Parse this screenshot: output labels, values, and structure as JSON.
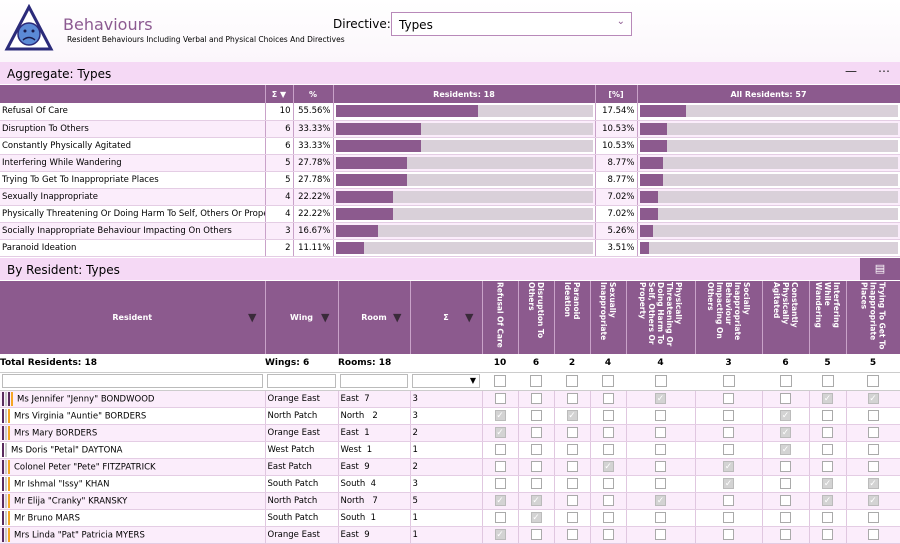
{
  "header": {
    "title": "Behaviours",
    "subtitle": "Resident Behaviours Including Verbal and Physical Choices And Directives",
    "directive_label": "Directive:",
    "directive_value": "Types"
  },
  "aggregate": {
    "title": "Aggregate: Types",
    "columns": {
      "sigma": "Σ",
      "pct": "%",
      "residents": "Residents: 18",
      "pct2": "[%]",
      "all": "All Residents: 57"
    },
    "rows": [
      {
        "label": "Refusal Of Care",
        "count": "10",
        "pct": "55.56%",
        "pct_value": 55.56,
        "all_pct": "17.54%",
        "all_value": 17.54
      },
      {
        "label": "Disruption To Others",
        "count": "6",
        "pct": "33.33%",
        "pct_value": 33.33,
        "all_pct": "10.53%",
        "all_value": 10.53
      },
      {
        "label": "Constantly Physically Agitated",
        "count": "6",
        "pct": "33.33%",
        "pct_value": 33.33,
        "all_pct": "10.53%",
        "all_value": 10.53
      },
      {
        "label": "Interfering While Wandering",
        "count": "5",
        "pct": "27.78%",
        "pct_value": 27.78,
        "all_pct": "8.77%",
        "all_value": 8.77
      },
      {
        "label": "Trying To Get To Inappropriate Places",
        "count": "5",
        "pct": "27.78%",
        "pct_value": 27.78,
        "all_pct": "8.77%",
        "all_value": 8.77
      },
      {
        "label": "Sexually Inappropriate",
        "count": "4",
        "pct": "22.22%",
        "pct_value": 22.22,
        "all_pct": "7.02%",
        "all_value": 7.02
      },
      {
        "label": "Physically Threatening Or Doing Harm To Self, Others Or Property",
        "count": "4",
        "pct": "22.22%",
        "pct_value": 22.22,
        "all_pct": "7.02%",
        "all_value": 7.02
      },
      {
        "label": "Socially Inappropriate Behaviour Impacting On Others",
        "count": "3",
        "pct": "16.67%",
        "pct_value": 16.67,
        "all_pct": "5.26%",
        "all_value": 5.26
      },
      {
        "label": "Paranoid Ideation",
        "count": "2",
        "pct": "11.11%",
        "pct_value": 11.11,
        "all_pct": "3.51%",
        "all_value": 3.51
      }
    ]
  },
  "by_resident": {
    "title": "By Resident: Types",
    "columns": {
      "resident": "Resident",
      "wing": "Wing",
      "room": "Room",
      "sigma": "Σ"
    },
    "type_columns": [
      "Refusal Of Care",
      "Disruption To Others",
      "Paranoid Ideation",
      "Sexually Inappropriate",
      "Physically Threatening Or Doing Harm To Self, Others Or Property",
      "Socially Inappropriate Behaviour Impacting On Others",
      "Constantly Physically Agitated",
      "Interfering While Wandering",
      "Trying To Get To Inappropriate Places"
    ],
    "totals": {
      "residents": "Total Residents: 18",
      "wings": "Wings: 6",
      "rooms": "Rooms: 18",
      "type_counts": [
        "10",
        "6",
        "2",
        "4",
        "4",
        "3",
        "6",
        "5",
        "5"
      ]
    },
    "rows": [
      {
        "name": "Ms Jennifer \"Jenny\" BONDWOOD",
        "wing": "Orange East",
        "room": "East  7",
        "count": "3",
        "stripes": [
          "#5a2a5e",
          "#ffffff",
          "#5a2a5e",
          "#f5a623"
        ],
        "checks": [
          0,
          0,
          0,
          0,
          1,
          0,
          0,
          1,
          1
        ]
      },
      {
        "name": "Mrs Virginia \"Auntie\" BORDERS",
        "wing": "North Patch",
        "room": "North   2",
        "count": "3",
        "stripes": [
          "#5a2a5e",
          "#ffffff",
          "#f5a623"
        ],
        "checks": [
          1,
          0,
          1,
          0,
          0,
          0,
          1,
          0,
          0
        ]
      },
      {
        "name": "Mrs Mary BORDERS",
        "wing": "Orange East",
        "room": "East  1",
        "count": "2",
        "stripes": [
          "#5a2a5e",
          "#ffffff",
          "#f5a623"
        ],
        "checks": [
          1,
          0,
          0,
          0,
          0,
          0,
          1,
          0,
          0
        ]
      },
      {
        "name": "Ms Doris \"Petal\" DAYTONA",
        "wing": "West Patch",
        "room": "West  1",
        "count": "1",
        "stripes": [
          "#5a2a5e",
          "#ffffff"
        ],
        "checks": [
          0,
          0,
          0,
          0,
          0,
          0,
          1,
          0,
          0
        ]
      },
      {
        "name": "Colonel Peter \"Pete\" FITZPATRICK",
        "wing": "East Patch",
        "room": "East  9",
        "count": "2",
        "stripes": [
          "#5a2a5e",
          "#ffffff",
          "#f5a623"
        ],
        "checks": [
          0,
          0,
          0,
          1,
          0,
          1,
          0,
          0,
          0
        ]
      },
      {
        "name": "Mr Ishmal \"Issy\" KHAN",
        "wing": "South Patch",
        "room": "South  4",
        "count": "3",
        "stripes": [
          "#5a2a5e",
          "#ffffff",
          "#f5a623"
        ],
        "checks": [
          0,
          0,
          0,
          0,
          0,
          1,
          0,
          1,
          1
        ]
      },
      {
        "name": "Mr Elija \"Cranky\" KRANSKY",
        "wing": "North Patch",
        "room": "North   7",
        "count": "5",
        "stripes": [
          "#5a2a5e",
          "#ffffff",
          "#f5a623"
        ],
        "checks": [
          1,
          1,
          0,
          0,
          1,
          0,
          0,
          1,
          1
        ]
      },
      {
        "name": "Mr Bruno MARS",
        "wing": "South Patch",
        "room": "South  1",
        "count": "1",
        "stripes": [
          "#5a2a5e",
          "#ffffff",
          "#f5a623"
        ],
        "checks": [
          0,
          1,
          0,
          0,
          0,
          0,
          0,
          0,
          0
        ]
      },
      {
        "name": "Mrs Linda \"Pat\" Patricia MYERS",
        "wing": "Orange East",
        "room": "East  9",
        "count": "1",
        "stripes": [
          "#5a2a5e",
          "#ffffff",
          "#f5a623"
        ],
        "checks": [
          1,
          0,
          0,
          0,
          0,
          0,
          0,
          0,
          0
        ]
      }
    ]
  },
  "colors": {
    "accent": "#8c5a8e",
    "panel": "#f5d9f5",
    "orange": "#f5a623"
  },
  "icons": {
    "logo": "sad-face-triangle-logo",
    "filter": "filter-icon",
    "sort": "sort-down-icon"
  }
}
